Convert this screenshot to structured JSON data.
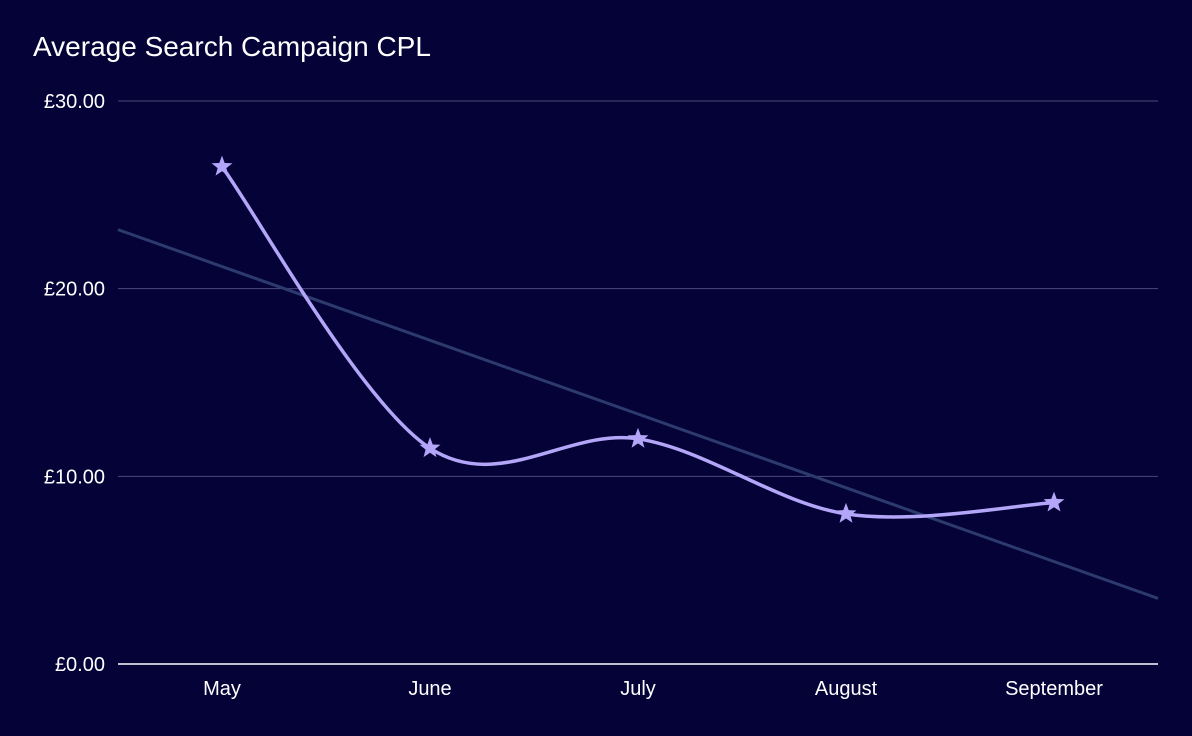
{
  "chart_data": {
    "type": "line",
    "title": "Average Search Campaign CPL",
    "categories": [
      "May",
      "June",
      "July",
      "August",
      "September"
    ],
    "series": [
      {
        "values": [
          26.5,
          11.5,
          12.0,
          8.0,
          8.6
        ],
        "color": "#b3a6f8",
        "marker": "star",
        "smooth": true
      }
    ],
    "trendline": {
      "type": "linear",
      "color": "#2c3a6e"
    },
    "y_ticks": [
      "£0.00",
      "£10.00",
      "£20.00",
      "£30.00"
    ],
    "ylim": [
      0,
      30
    ],
    "grid": true,
    "colors": {
      "background": "#050238",
      "gridline": "#4a4a7a",
      "axis": "#ffffff",
      "text": "#ffffff"
    }
  }
}
